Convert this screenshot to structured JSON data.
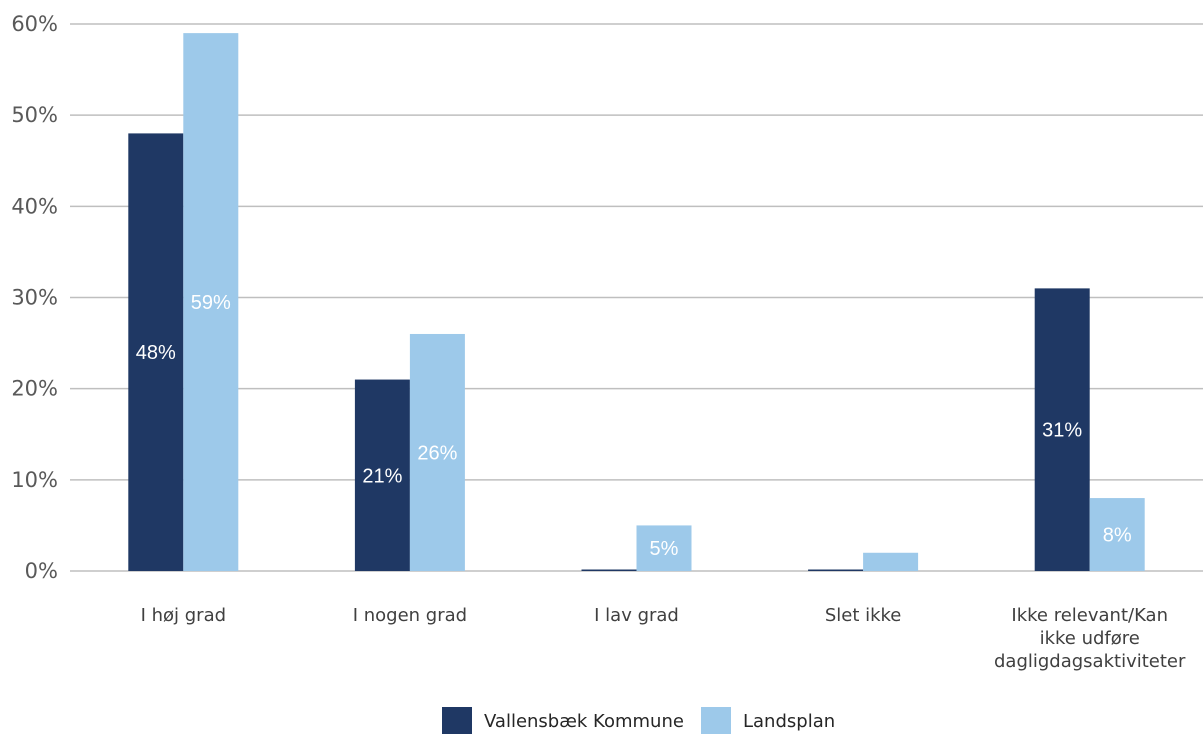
{
  "chart_data": {
    "type": "bar",
    "categories": [
      [
        "I høj grad"
      ],
      [
        "I nogen grad"
      ],
      [
        "I lav grad"
      ],
      [
        "Slet ikke"
      ],
      [
        "Ikke relevant/Kan",
        "ikke udføre",
        "dagligdagsaktiviteter"
      ]
    ],
    "series": [
      {
        "name": "Vallensbæk Kommune",
        "color": "#1f3864",
        "values": [
          48,
          21,
          0,
          0,
          31
        ],
        "labels": [
          "48%",
          "21%",
          "",
          "",
          "31%"
        ]
      },
      {
        "name": "Landsplan",
        "color": "#9dc9ea",
        "values": [
          59,
          26,
          5,
          2,
          8
        ],
        "labels": [
          "59%",
          "26%",
          "5%",
          "",
          "8%"
        ]
      }
    ],
    "yticks": [
      "0%",
      "10%",
      "20%",
      "30%",
      "40%",
      "50%",
      "60%"
    ],
    "ylim": [
      0,
      60
    ],
    "grid": true,
    "legend_position": "bottom",
    "gridline_color": "#bfbfbf"
  }
}
